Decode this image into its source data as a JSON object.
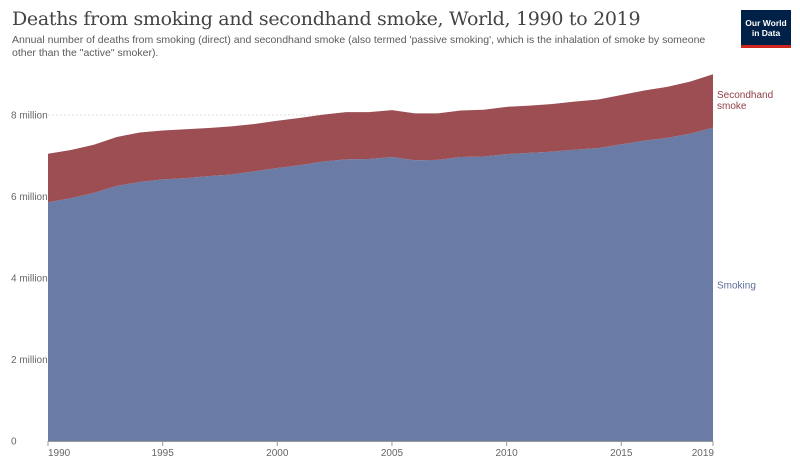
{
  "title": "Deaths from smoking and secondhand smoke, World, 1990 to 2019",
  "subtitle": "Annual number of deaths from smoking (direct) and secondhand smoke (also termed 'passive smoking', which is the inhalation of smoke by someone other than the \"active\" smoker).",
  "logo": {
    "line1": "Our World",
    "line2": "in Data"
  },
  "chart_data": {
    "type": "area",
    "stacked": true,
    "x": [
      1990,
      1991,
      1992,
      1993,
      1994,
      1995,
      1996,
      1997,
      1998,
      1999,
      2000,
      2001,
      2002,
      2003,
      2004,
      2005,
      2006,
      2007,
      2008,
      2009,
      2010,
      2011,
      2012,
      2013,
      2014,
      2015,
      2016,
      2017,
      2018,
      2019
    ],
    "series": [
      {
        "name": "Smoking",
        "color": "#6a7ca6",
        "values": [
          5860000,
          5960000,
          6090000,
          6260000,
          6360000,
          6420000,
          6450000,
          6500000,
          6540000,
          6620000,
          6700000,
          6770000,
          6860000,
          6910000,
          6920000,
          6970000,
          6890000,
          6900000,
          6970000,
          6980000,
          7040000,
          7070000,
          7100000,
          7150000,
          7190000,
          7280000,
          7370000,
          7440000,
          7540000,
          7690000
        ]
      },
      {
        "name": "Secondhand smoke",
        "color": "#9c4e52",
        "values": [
          1190000,
          1180000,
          1180000,
          1200000,
          1210000,
          1200000,
          1200000,
          1180000,
          1180000,
          1160000,
          1160000,
          1160000,
          1150000,
          1160000,
          1150000,
          1150000,
          1150000,
          1140000,
          1140000,
          1150000,
          1160000,
          1160000,
          1170000,
          1180000,
          1190000,
          1210000,
          1230000,
          1250000,
          1280000,
          1310000
        ]
      }
    ],
    "x_ticks": [
      1990,
      1995,
      2000,
      2005,
      2010,
      2015,
      2019
    ],
    "y_ticks": [
      0,
      2000000,
      4000000,
      6000000,
      8000000
    ],
    "y_tick_labels": [
      "0",
      "2 million",
      "4 million",
      "6 million",
      "8 million"
    ],
    "series_labels": [
      {
        "lines": [
          "Smoking"
        ],
        "color": "#5c6d99"
      },
      {
        "lines": [
          "Secondhand",
          "smoke"
        ],
        "color": "#8f3f44"
      }
    ],
    "ylim": [
      0,
      8000000
    ],
    "xlim": [
      1990,
      2019
    ],
    "grid": "horizontal dotted"
  }
}
